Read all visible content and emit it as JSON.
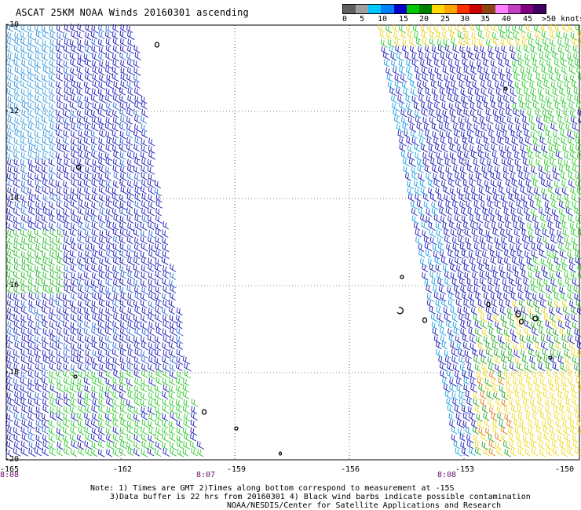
{
  "title": "ASCAT 25KM NOAA Winds 20160301 ascending",
  "legend": {
    "colors": [
      "#606060",
      "#a0a0a0",
      "#00c8ff",
      "#0080ff",
      "#0000c8",
      "#00c800",
      "#008000",
      "#ffd700",
      "#ffa500",
      "#ff3000",
      "#c80000",
      "#8b4513",
      "#ff80ff",
      "#c040c0",
      "#800080",
      "#400060"
    ],
    "labels": [
      "0",
      "5",
      "10",
      "15",
      "20",
      "25",
      "30",
      "35",
      "40",
      "45",
      ">50 knots"
    ]
  },
  "axes": {
    "lat_labels": [
      "-10",
      "-12",
      "-14",
      "-16",
      "-18",
      "-20"
    ],
    "lon_labels": [
      "-165",
      "-162",
      "-159",
      "-156",
      "-153",
      "-150"
    ]
  },
  "passes": [
    "8:08",
    "8:07",
    "8:08"
  ],
  "notes": {
    "line1": "Note: 1) Times are GMT 2)Times along bottom correspond to measurement at -15S",
    "line2": "3)Data buffer is 22 hrs from 20160301 4) Black wind barbs indicate possible contamination",
    "line3": "NOAA/NESDIS/Center for Satellite Applications and Research"
  }
}
